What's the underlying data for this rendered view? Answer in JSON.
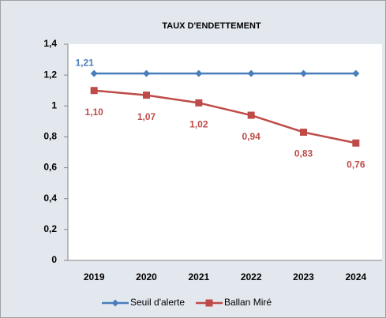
{
  "chart_data": {
    "type": "line",
    "title": "TAUX D'ENDETTEMENT",
    "categories": [
      "2019",
      "2020",
      "2021",
      "2022",
      "2023",
      "2024"
    ],
    "series": [
      {
        "name": "Seuil d'alerte",
        "color": "#4a7ebb",
        "marker": "diamond",
        "values": [
          1.21,
          1.21,
          1.21,
          1.21,
          1.21,
          1.21
        ],
        "value_labels": [
          "1,21",
          null,
          null,
          null,
          null,
          null
        ]
      },
      {
        "name": "Ballan Miré",
        "color": "#be4b48",
        "marker": "square",
        "values": [
          1.1,
          1.07,
          1.02,
          0.94,
          0.83,
          0.76
        ],
        "value_labels": [
          "1,10",
          "1,07",
          "1,02",
          "0,94",
          "0,83",
          "0,76"
        ]
      }
    ],
    "ylim": [
      0,
      1.4
    ],
    "yticks": [
      0,
      {
        "value": 0.2,
        "label": "0,2"
      },
      {
        "value": 0.4,
        "label": "0,4"
      },
      {
        "value": 0.6,
        "label": "0,6"
      },
      {
        "value": 0.8,
        "label": "0,8"
      },
      1,
      {
        "value": 1.2,
        "label": "1,2"
      },
      {
        "value": 1.4,
        "label": "1,4"
      }
    ],
    "grid": false,
    "legend": "bottom"
  }
}
